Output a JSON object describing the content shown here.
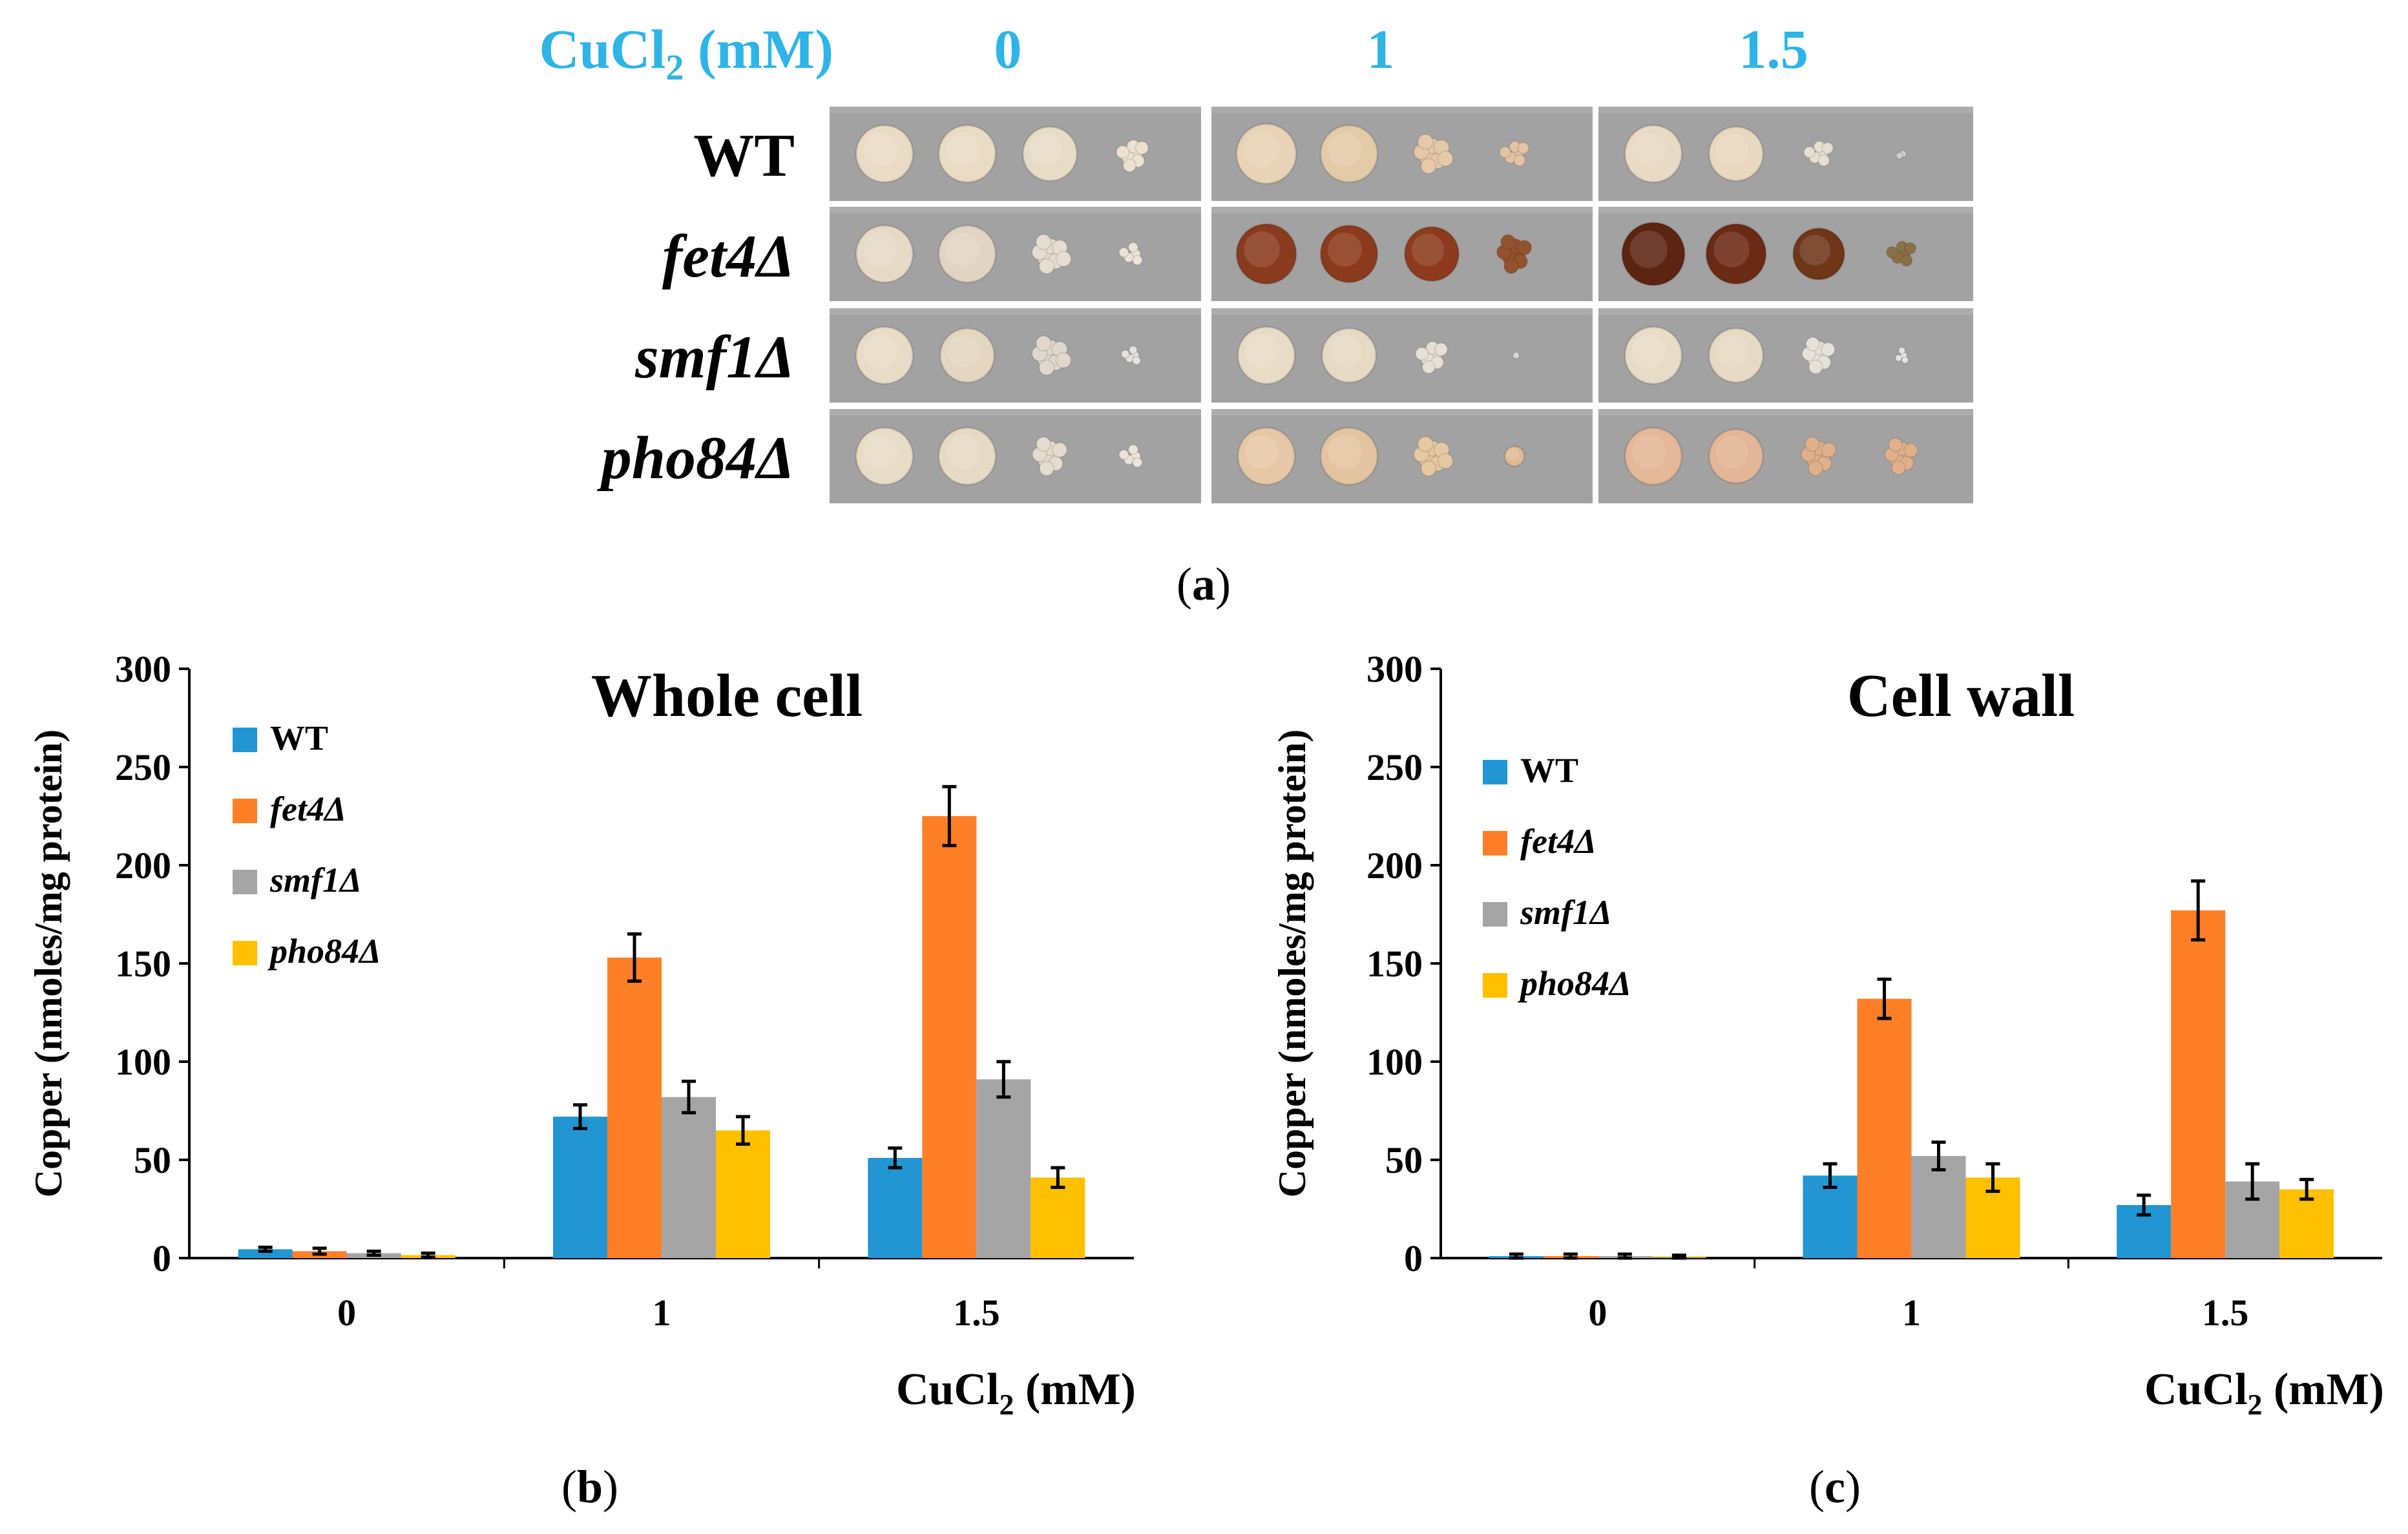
{
  "panel_a": {
    "header_label": "CuCl",
    "header_sub": "2",
    "header_unit": " (mM)",
    "conditions": [
      "0",
      "1",
      "1.5"
    ],
    "strains": [
      {
        "name": "WT",
        "italic": false
      },
      {
        "name": "fet4Δ",
        "italic": true
      },
      {
        "name": "smf1Δ",
        "italic": true
      },
      {
        "name": "pho84Δ",
        "italic": true
      }
    ],
    "label_color": "#2eb4e6",
    "plate_spots": [
      [
        [
          {
            "c": "#eadbc4",
            "s": 1.0,
            "t": "s"
          },
          {
            "c": "#eadbc4",
            "s": 1.0,
            "t": "s"
          },
          {
            "c": "#e8dcc6",
            "s": 0.95,
            "t": "s"
          },
          {
            "c": "#ece2cf",
            "s": 0.8,
            "t": "c"
          }
        ],
        [
          {
            "c": "#e8d3b6",
            "s": 1.05,
            "t": "s"
          },
          {
            "c": "#e4cba8",
            "s": 1.0,
            "t": "s"
          },
          {
            "c": "#e6c9a8",
            "s": 0.95,
            "t": "c"
          },
          {
            "c": "#e4c4a2",
            "s": 0.7,
            "t": "c"
          }
        ],
        [
          {
            "c": "#e8dac4",
            "s": 1.0,
            "t": "s"
          },
          {
            "c": "#e7d8bf",
            "s": 0.95,
            "t": "s"
          },
          {
            "c": "#e6dfd2",
            "s": 0.7,
            "t": "c"
          },
          {
            "c": "#cfcfcf",
            "s": 0.2,
            "t": "c"
          }
        ]
      ],
      [
        [
          {
            "c": "#e6d9c6",
            "s": 1.0,
            "t": "s"
          },
          {
            "c": "#e2d4c2",
            "s": 1.0,
            "t": "s"
          },
          {
            "c": "#e6ddd0",
            "s": 0.95,
            "t": "c"
          },
          {
            "c": "#ece4d8",
            "s": 0.6,
            "t": "c"
          }
        ],
        [
          {
            "c": "#8a3b1e",
            "s": 1.05,
            "t": "s"
          },
          {
            "c": "#8b3a1b",
            "s": 1.0,
            "t": "s"
          },
          {
            "c": "#8d3b1c",
            "s": 0.95,
            "t": "s"
          },
          {
            "c": "#94522e",
            "s": 0.9,
            "t": "c"
          }
        ],
        [
          {
            "c": "#5d2412",
            "s": 1.1,
            "t": "s"
          },
          {
            "c": "#6b2a14",
            "s": 1.05,
            "t": "s"
          },
          {
            "c": "#6f3618",
            "s": 0.9,
            "t": "s"
          },
          {
            "c": "#8a7046",
            "s": 0.7,
            "t": "c"
          }
        ]
      ],
      [
        [
          {
            "c": "#e8dcc6",
            "s": 1.0,
            "t": "s"
          },
          {
            "c": "#e4d6c0",
            "s": 0.95,
            "t": "s"
          },
          {
            "c": "#e0d8cc",
            "s": 0.95,
            "t": "c"
          },
          {
            "c": "#e6e2dc",
            "s": 0.5,
            "t": "c"
          }
        ],
        [
          {
            "c": "#e8dcc6",
            "s": 1.0,
            "t": "s"
          },
          {
            "c": "#e6dac4",
            "s": 0.95,
            "t": "s"
          },
          {
            "c": "#e6e0d6",
            "s": 0.8,
            "t": "c"
          },
          {
            "c": "#d8d8d8",
            "s": 0.15,
            "t": "c"
          }
        ],
        [
          {
            "c": "#e8dcc6",
            "s": 1.0,
            "t": "s"
          },
          {
            "c": "#e6dac4",
            "s": 0.95,
            "t": "s"
          },
          {
            "c": "#e6e2da",
            "s": 0.85,
            "t": "c"
          },
          {
            "c": "#e4e4e4",
            "s": 0.4,
            "t": "c"
          }
        ]
      ],
      [
        [
          {
            "c": "#e8dcc6",
            "s": 1.0,
            "t": "s"
          },
          {
            "c": "#e6dac4",
            "s": 1.0,
            "t": "s"
          },
          {
            "c": "#e4dccd",
            "s": 0.9,
            "t": "c"
          },
          {
            "c": "#ece4d8",
            "s": 0.6,
            "t": "c"
          }
        ],
        [
          {
            "c": "#e6c8a6",
            "s": 1.0,
            "t": "s"
          },
          {
            "c": "#e4c4a0",
            "s": 1.0,
            "t": "s"
          },
          {
            "c": "#e6c8a2",
            "s": 0.95,
            "t": "c"
          },
          {
            "c": "#e0bc96",
            "s": 0.35,
            "t": "s"
          }
        ],
        [
          {
            "c": "#e4b898",
            "s": 1.0,
            "t": "s"
          },
          {
            "c": "#e2b696",
            "s": 0.95,
            "t": "s"
          },
          {
            "c": "#dfb08a",
            "s": 0.9,
            "t": "c"
          },
          {
            "c": "#e0b08c",
            "s": 0.85,
            "t": "c"
          }
        ]
      ]
    ]
  },
  "panel_labels": {
    "a": "(a)",
    "b": "(b)",
    "c": "(c)"
  },
  "chart_data": [
    {
      "type": "bar",
      "title": "Whole cell",
      "ylabel": "Copper (nmoles/mg protein)",
      "xlabel": "CuCl2 (mM)",
      "xlabel_main": "CuCl",
      "xlabel_sub": "2",
      "xlabel_unit": " (mM)",
      "categories": [
        "0",
        "1",
        "1.5"
      ],
      "ylim": [
        0,
        300
      ],
      "yticks": [
        0,
        50,
        100,
        150,
        200,
        250,
        300
      ],
      "legend_position": "top-left",
      "series": [
        {
          "name": "WT",
          "italic": false,
          "color": "#2196d3",
          "values": [
            4.5,
            72,
            51
          ],
          "errors": [
            1,
            6,
            5
          ]
        },
        {
          "name": "fet4Δ",
          "italic": true,
          "color": "#ff7f27",
          "values": [
            3.5,
            153,
            225
          ],
          "errors": [
            1.5,
            12,
            15
          ]
        },
        {
          "name": "smf1Δ",
          "italic": true,
          "color": "#a5a5a5",
          "values": [
            2.5,
            82,
            91
          ],
          "errors": [
            1,
            8,
            9
          ]
        },
        {
          "name": "pho84Δ",
          "italic": true,
          "color": "#ffc000",
          "values": [
            1.5,
            65,
            41
          ],
          "errors": [
            1,
            7,
            5
          ]
        }
      ]
    },
    {
      "type": "bar",
      "title": "Cell wall",
      "ylabel": "Copper (nmoles/mg protein)",
      "xlabel": "CuCl2 (mM)",
      "xlabel_main": "CuCl",
      "xlabel_sub": "2",
      "xlabel_unit": " (mM)",
      "categories": [
        "0",
        "1",
        "1.5"
      ],
      "ylim": [
        0,
        300
      ],
      "yticks": [
        0,
        50,
        100,
        150,
        200,
        250,
        300
      ],
      "legend_position": "top-left",
      "series": [
        {
          "name": "WT",
          "italic": false,
          "color": "#2196d3",
          "values": [
            1,
            42,
            27
          ],
          "errors": [
            1,
            6,
            5
          ]
        },
        {
          "name": "fet4Δ",
          "italic": true,
          "color": "#ff7f27",
          "values": [
            1,
            132,
            177
          ],
          "errors": [
            1,
            10,
            15
          ]
        },
        {
          "name": "smf1Δ",
          "italic": true,
          "color": "#a5a5a5",
          "values": [
            1,
            52,
            39
          ],
          "errors": [
            1,
            7,
            9
          ]
        },
        {
          "name": "pho84Δ",
          "italic": true,
          "color": "#ffc000",
          "values": [
            0.5,
            41,
            35
          ],
          "errors": [
            1,
            7,
            5
          ]
        }
      ]
    }
  ]
}
